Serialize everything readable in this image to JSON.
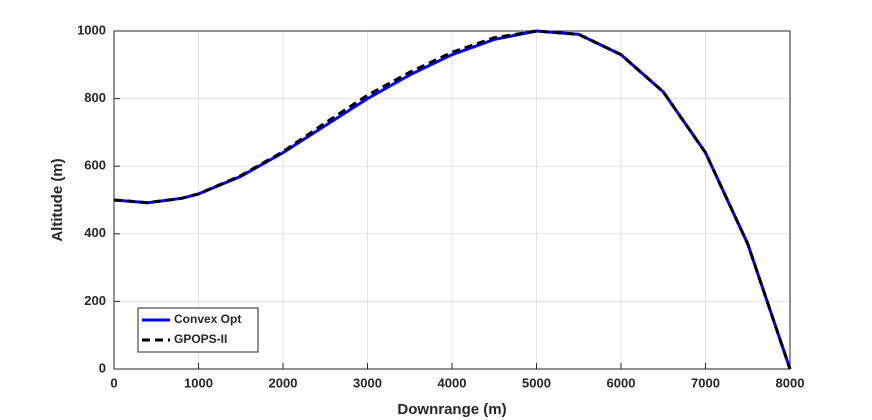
{
  "chart_data": {
    "type": "line",
    "xlabel": "Downrange (m)",
    "ylabel": "Altitude (m)",
    "x": [
      0,
      400,
      800,
      1000,
      1500,
      2000,
      2500,
      3000,
      3500,
      4000,
      4500,
      5000,
      5500,
      6000,
      6500,
      7000,
      7500,
      8000
    ],
    "series": [
      {
        "name": "Convex Opt",
        "color": "#0000ff",
        "style": "solid",
        "values": [
          500,
          492,
          505,
          518,
          570,
          640,
          720,
          800,
          870,
          930,
          975,
          1000,
          990,
          930,
          820,
          640,
          370,
          0
        ]
      },
      {
        "name": "GPOPS-II",
        "color": "#000000",
        "style": "dashed",
        "values": [
          500,
          492,
          505,
          518,
          572,
          643,
          728,
          810,
          878,
          937,
          980,
          1000,
          990,
          930,
          820,
          640,
          370,
          0
        ]
      }
    ],
    "xlim": [
      0,
      8000
    ],
    "xticks": [
      0,
      1000,
      2000,
      3000,
      4000,
      5000,
      6000,
      7000,
      8000
    ],
    "ylim": [
      0,
      1000
    ],
    "yticks": [
      0,
      200,
      400,
      600,
      800,
      1000
    ],
    "grid": true,
    "legend": "southwest"
  }
}
